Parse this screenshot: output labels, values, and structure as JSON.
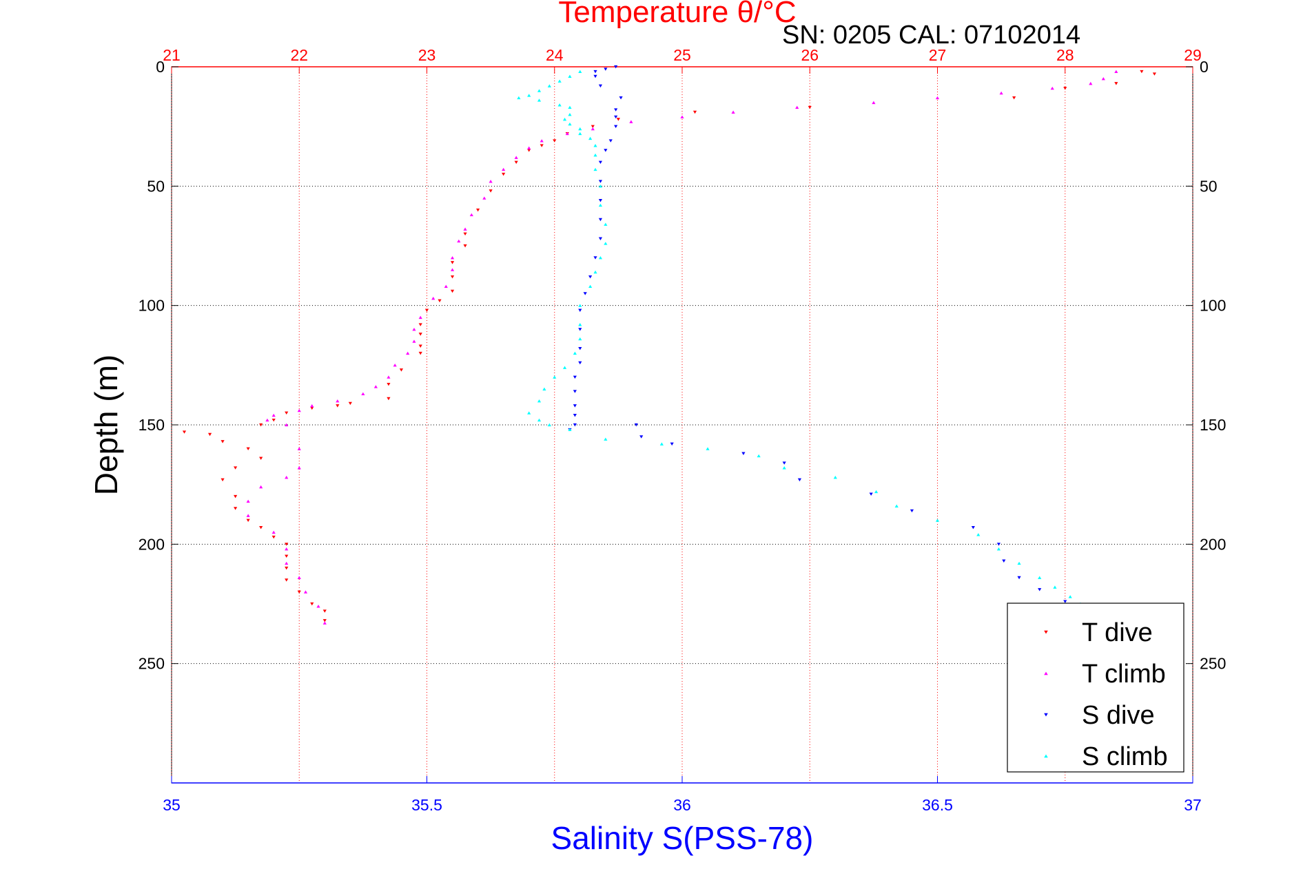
{
  "chart_data": {
    "type": "scatter",
    "title": "Temperature θ/°C",
    "subtitle": "SN: 0205  CAL: 07102014",
    "xlabel": "Salinity S(PSS-78)",
    "ylabel": "Depth (m)",
    "x_top": {
      "label": "Temperature θ/°C",
      "range": [
        21,
        29
      ],
      "ticks": [
        21,
        22,
        23,
        24,
        25,
        26,
        27,
        28,
        29
      ]
    },
    "x_bottom": {
      "label": "Salinity S(PSS-78)",
      "range": [
        35,
        37
      ],
      "ticks": [
        "35",
        "35.5",
        "36",
        "36.5",
        "37"
      ]
    },
    "y": {
      "range": [
        0,
        300
      ],
      "reversed": true,
      "ticks": [
        0,
        50,
        100,
        150,
        200,
        250
      ]
    },
    "grid": true,
    "legend": "bottom-right",
    "series": [
      {
        "name": "T dive",
        "axis": "temperature",
        "color": "#ff0000",
        "marker": "triangle-down",
        "points": [
          [
            28.6,
            2
          ],
          [
            28.7,
            3
          ],
          [
            28.4,
            7
          ],
          [
            28.0,
            9
          ],
          [
            27.6,
            13
          ],
          [
            26.0,
            17
          ],
          [
            25.1,
            19
          ],
          [
            24.5,
            22
          ],
          [
            24.3,
            25
          ],
          [
            24.1,
            28
          ],
          [
            24.0,
            31
          ],
          [
            23.9,
            33
          ],
          [
            23.8,
            35
          ],
          [
            23.7,
            40
          ],
          [
            23.6,
            45
          ],
          [
            23.5,
            52
          ],
          [
            23.4,
            60
          ],
          [
            23.3,
            70
          ],
          [
            23.3,
            75
          ],
          [
            23.2,
            82
          ],
          [
            23.2,
            88
          ],
          [
            23.2,
            94
          ],
          [
            23.1,
            98
          ],
          [
            23.0,
            102
          ],
          [
            22.95,
            108
          ],
          [
            22.95,
            112
          ],
          [
            22.95,
            117
          ],
          [
            22.95,
            120
          ],
          [
            22.8,
            127
          ],
          [
            22.7,
            133
          ],
          [
            22.7,
            139
          ],
          [
            22.4,
            141
          ],
          [
            22.3,
            142
          ],
          [
            22.1,
            143
          ],
          [
            21.9,
            145
          ],
          [
            21.8,
            148
          ],
          [
            21.7,
            150
          ],
          [
            21.3,
            154
          ],
          [
            21.1,
            153
          ],
          [
            21.4,
            157
          ],
          [
            21.6,
            160
          ],
          [
            21.7,
            164
          ],
          [
            21.5,
            168
          ],
          [
            21.4,
            173
          ],
          [
            21.5,
            180
          ],
          [
            21.5,
            185
          ],
          [
            21.6,
            190
          ],
          [
            21.7,
            193
          ],
          [
            21.8,
            197
          ],
          [
            21.9,
            200
          ],
          [
            21.9,
            205
          ],
          [
            21.9,
            210
          ],
          [
            21.9,
            215
          ],
          [
            22.0,
            220
          ],
          [
            22.1,
            225
          ],
          [
            22.2,
            228
          ],
          [
            22.2,
            232
          ]
        ]
      },
      {
        "name": "T climb",
        "axis": "temperature",
        "color": "#ff00ff",
        "marker": "triangle-up",
        "points": [
          [
            28.4,
            2
          ],
          [
            28.3,
            5
          ],
          [
            28.2,
            7
          ],
          [
            27.9,
            9
          ],
          [
            27.5,
            11
          ],
          [
            27.0,
            13
          ],
          [
            26.5,
            15
          ],
          [
            25.9,
            17
          ],
          [
            25.4,
            19
          ],
          [
            25.0,
            21
          ],
          [
            24.6,
            23
          ],
          [
            24.3,
            26
          ],
          [
            24.1,
            28
          ],
          [
            23.9,
            31
          ],
          [
            23.8,
            34
          ],
          [
            23.7,
            38
          ],
          [
            23.6,
            43
          ],
          [
            23.5,
            48
          ],
          [
            23.45,
            55
          ],
          [
            23.35,
            62
          ],
          [
            23.3,
            68
          ],
          [
            23.25,
            73
          ],
          [
            23.2,
            80
          ],
          [
            23.2,
            85
          ],
          [
            23.15,
            92
          ],
          [
            23.05,
            97
          ],
          [
            22.95,
            105
          ],
          [
            22.9,
            110
          ],
          [
            22.9,
            115
          ],
          [
            22.85,
            120
          ],
          [
            22.75,
            125
          ],
          [
            22.7,
            130
          ],
          [
            22.6,
            134
          ],
          [
            22.5,
            137
          ],
          [
            22.3,
            140
          ],
          [
            22.1,
            142
          ],
          [
            22.0,
            144
          ],
          [
            21.8,
            146
          ],
          [
            21.75,
            148
          ],
          [
            21.9,
            150
          ],
          [
            22.0,
            160
          ],
          [
            22.0,
            168
          ],
          [
            21.9,
            172
          ],
          [
            21.7,
            176
          ],
          [
            21.6,
            182
          ],
          [
            21.6,
            188
          ],
          [
            21.8,
            195
          ],
          [
            21.9,
            202
          ],
          [
            21.9,
            208
          ],
          [
            22.0,
            214
          ],
          [
            22.05,
            220
          ],
          [
            22.15,
            226
          ],
          [
            22.2,
            233
          ]
        ]
      },
      {
        "name": "S dive",
        "axis": "salinity",
        "color": "#0000ff",
        "marker": "triangle-down",
        "points": [
          [
            35.87,
            0
          ],
          [
            35.85,
            1
          ],
          [
            35.83,
            2
          ],
          [
            35.83,
            4
          ],
          [
            35.84,
            8
          ],
          [
            35.88,
            13
          ],
          [
            35.87,
            18
          ],
          [
            35.87,
            21
          ],
          [
            35.87,
            25
          ],
          [
            35.86,
            31
          ],
          [
            35.85,
            35
          ],
          [
            35.84,
            40
          ],
          [
            35.84,
            48
          ],
          [
            35.84,
            56
          ],
          [
            35.84,
            64
          ],
          [
            35.84,
            72
          ],
          [
            35.83,
            80
          ],
          [
            35.82,
            88
          ],
          [
            35.81,
            95
          ],
          [
            35.8,
            102
          ],
          [
            35.8,
            110
          ],
          [
            35.8,
            118
          ],
          [
            35.8,
            124
          ],
          [
            35.79,
            130
          ],
          [
            35.79,
            136
          ],
          [
            35.79,
            142
          ],
          [
            35.79,
            146
          ],
          [
            35.79,
            150
          ],
          [
            35.78,
            152
          ],
          [
            35.91,
            150
          ],
          [
            35.92,
            155
          ],
          [
            35.98,
            158
          ],
          [
            36.12,
            162
          ],
          [
            36.2,
            166
          ],
          [
            36.23,
            173
          ],
          [
            36.37,
            179
          ],
          [
            36.45,
            186
          ],
          [
            36.57,
            193
          ],
          [
            36.62,
            200
          ],
          [
            36.63,
            207
          ],
          [
            36.66,
            214
          ],
          [
            36.7,
            219
          ],
          [
            36.75,
            224
          ],
          [
            36.8,
            228
          ],
          [
            36.85,
            226
          ]
        ]
      },
      {
        "name": "S climb",
        "axis": "salinity",
        "color": "#00ffff",
        "marker": "triangle-up",
        "points": [
          [
            35.8,
            2
          ],
          [
            35.78,
            4
          ],
          [
            35.76,
            6
          ],
          [
            35.74,
            8
          ],
          [
            35.72,
            10
          ],
          [
            35.7,
            12
          ],
          [
            35.68,
            13
          ],
          [
            35.72,
            14
          ],
          [
            35.76,
            16
          ],
          [
            35.78,
            17
          ],
          [
            35.78,
            20
          ],
          [
            35.77,
            22
          ],
          [
            35.78,
            24
          ],
          [
            35.8,
            26
          ],
          [
            35.8,
            28
          ],
          [
            35.82,
            30
          ],
          [
            35.83,
            33
          ],
          [
            35.83,
            37
          ],
          [
            35.83,
            43
          ],
          [
            35.84,
            50
          ],
          [
            35.84,
            58
          ],
          [
            35.85,
            66
          ],
          [
            35.85,
            74
          ],
          [
            35.84,
            80
          ],
          [
            35.83,
            86
          ],
          [
            35.82,
            92
          ],
          [
            35.8,
            100
          ],
          [
            35.8,
            108
          ],
          [
            35.8,
            114
          ],
          [
            35.79,
            120
          ],
          [
            35.77,
            126
          ],
          [
            35.75,
            130
          ],
          [
            35.73,
            135
          ],
          [
            35.72,
            140
          ],
          [
            35.7,
            145
          ],
          [
            35.72,
            148
          ],
          [
            35.74,
            150
          ],
          [
            35.78,
            152
          ],
          [
            35.85,
            156
          ],
          [
            35.96,
            158
          ],
          [
            36.05,
            160
          ],
          [
            36.15,
            163
          ],
          [
            36.2,
            168
          ],
          [
            36.3,
            172
          ],
          [
            36.38,
            178
          ],
          [
            36.42,
            184
          ],
          [
            36.5,
            190
          ],
          [
            36.58,
            196
          ],
          [
            36.62,
            202
          ],
          [
            36.66,
            208
          ],
          [
            36.7,
            214
          ],
          [
            36.73,
            218
          ],
          [
            36.76,
            222
          ],
          [
            36.78,
            225
          ],
          [
            36.8,
            226
          ]
        ]
      }
    ]
  }
}
